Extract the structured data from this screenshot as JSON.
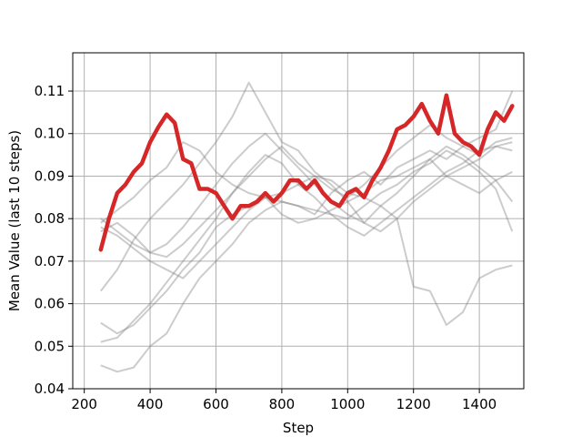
{
  "chart_data": {
    "type": "line",
    "xlabel": "Step",
    "ylabel": "Mean Value (last 10 steps)",
    "xlim": [
      165,
      1535
    ],
    "ylim": [
      0.04,
      0.119
    ],
    "xticks": [
      200,
      400,
      600,
      800,
      1000,
      1200,
      1400
    ],
    "yticks": [
      0.04,
      0.05,
      0.06,
      0.07,
      0.08,
      0.09,
      0.1,
      0.11
    ],
    "xtick_labels": [
      "200",
      "400",
      "600",
      "800",
      "1000",
      "1200",
      "1400"
    ],
    "ytick_labels": [
      "0.04",
      "0.05",
      "0.06",
      "0.07",
      "0.08",
      "0.09",
      "0.10",
      "0.11"
    ],
    "grid": true,
    "legend": "none",
    "colors": {
      "highlight": "#d62728",
      "background_series": "#808080"
    },
    "highlight_series": {
      "x": [
        250,
        275,
        300,
        325,
        350,
        375,
        400,
        425,
        450,
        475,
        500,
        525,
        550,
        575,
        600,
        625,
        650,
        675,
        700,
        725,
        750,
        775,
        800,
        825,
        850,
        875,
        900,
        925,
        950,
        975,
        1000,
        1025,
        1050,
        1075,
        1100,
        1125,
        1150,
        1175,
        1200,
        1225,
        1250,
        1275,
        1300,
        1325,
        1350,
        1375,
        1400,
        1425,
        1450,
        1475,
        1500
      ],
      "values": [
        0.0727,
        0.08,
        0.086,
        0.088,
        0.091,
        0.093,
        0.098,
        0.1015,
        0.1045,
        0.1025,
        0.094,
        0.093,
        0.087,
        0.087,
        0.086,
        0.083,
        0.08,
        0.083,
        0.083,
        0.084,
        0.086,
        0.084,
        0.086,
        0.089,
        0.089,
        0.087,
        0.089,
        0.086,
        0.084,
        0.083,
        0.086,
        0.087,
        0.085,
        0.089,
        0.092,
        0.096,
        0.101,
        0.102,
        0.104,
        0.107,
        0.103,
        0.1,
        0.109,
        0.1,
        0.098,
        0.097,
        0.095,
        0.101,
        0.105,
        0.103,
        0.1065
      ]
    },
    "background_series": [
      {
        "x": [
          250,
          300,
          350,
          400,
          450,
          500,
          550,
          600,
          650,
          700,
          750,
          800,
          850,
          900,
          950,
          1000,
          1050,
          1100,
          1150,
          1200,
          1250,
          1300,
          1350,
          1400,
          1450,
          1500
        ],
        "values": [
          0.0455,
          0.044,
          0.045,
          0.05,
          0.053,
          0.06,
          0.066,
          0.07,
          0.074,
          0.079,
          0.082,
          0.084,
          0.083,
          0.081,
          0.086,
          0.089,
          0.091,
          0.088,
          0.092,
          0.094,
          0.096,
          0.094,
          0.097,
          0.099,
          0.101,
          0.11
        ]
      },
      {
        "x": [
          250,
          300,
          350,
          400,
          450,
          500,
          550,
          600,
          650,
          700,
          750,
          800,
          850,
          900,
          950,
          1000,
          1050,
          1100,
          1150,
          1200,
          1250,
          1300,
          1350,
          1400,
          1450,
          1500
        ],
        "values": [
          0.0555,
          0.053,
          0.055,
          0.059,
          0.063,
          0.068,
          0.072,
          0.078,
          0.081,
          0.083,
          0.085,
          0.086,
          0.088,
          0.09,
          0.089,
          0.086,
          0.085,
          0.083,
          0.08,
          0.064,
          0.063,
          0.055,
          0.058,
          0.066,
          0.068,
          0.069
        ]
      },
      {
        "x": [
          250,
          300,
          350,
          400,
          450,
          500,
          550,
          600,
          650,
          700,
          750,
          800,
          850,
          900,
          950,
          1000,
          1050,
          1100,
          1150,
          1200,
          1250,
          1300,
          1350,
          1400,
          1450,
          1500
        ],
        "values": [
          0.063,
          0.068,
          0.075,
          0.08,
          0.084,
          0.088,
          0.093,
          0.098,
          0.104,
          0.112,
          0.105,
          0.098,
          0.096,
          0.091,
          0.088,
          0.084,
          0.079,
          0.083,
          0.086,
          0.09,
          0.094,
          0.097,
          0.095,
          0.092,
          0.089,
          0.084
        ]
      },
      {
        "x": [
          250,
          300,
          350,
          400,
          450,
          500,
          550,
          600,
          650,
          700,
          750,
          800,
          850,
          900,
          950,
          1000,
          1050,
          1100,
          1150,
          1200,
          1250,
          1300,
          1350,
          1400,
          1450,
          1500
        ],
        "values": [
          0.079,
          0.082,
          0.085,
          0.089,
          0.092,
          0.098,
          0.096,
          0.091,
          0.088,
          0.086,
          0.085,
          0.084,
          0.083,
          0.082,
          0.081,
          0.08,
          0.083,
          0.086,
          0.088,
          0.091,
          0.093,
          0.096,
          0.094,
          0.091,
          0.087,
          0.077
        ]
      },
      {
        "x": [
          250,
          300,
          350,
          400,
          450,
          500,
          550,
          600,
          650,
          700,
          750,
          800,
          850,
          900,
          950,
          1000,
          1050,
          1100,
          1150,
          1200,
          1250,
          1300,
          1350,
          1400,
          1450,
          1500
        ],
        "values": [
          0.08,
          0.077,
          0.074,
          0.072,
          0.071,
          0.074,
          0.078,
          0.082,
          0.086,
          0.09,
          0.094,
          0.097,
          0.093,
          0.09,
          0.087,
          0.085,
          0.088,
          0.092,
          0.096,
          0.099,
          0.102,
          0.099,
          0.097,
          0.095,
          0.098,
          0.099
        ]
      },
      {
        "x": [
          250,
          300,
          350,
          400,
          450,
          500,
          550,
          600,
          650,
          700,
          750,
          800,
          850,
          900,
          950,
          1000,
          1050,
          1100,
          1150,
          1200,
          1250,
          1300,
          1350,
          1400,
          1450,
          1500
        ],
        "values": [
          0.078,
          0.076,
          0.073,
          0.07,
          0.068,
          0.066,
          0.07,
          0.074,
          0.078,
          0.082,
          0.085,
          0.081,
          0.079,
          0.08,
          0.082,
          0.084,
          0.086,
          0.089,
          0.09,
          0.092,
          0.094,
          0.09,
          0.088,
          0.086,
          0.089,
          0.091
        ]
      },
      {
        "x": [
          250,
          300,
          350,
          400,
          450,
          500,
          550,
          600,
          650,
          700,
          750,
          800,
          850,
          900,
          950,
          1000,
          1050,
          1100,
          1150,
          1200,
          1250,
          1300,
          1350,
          1400,
          1450,
          1500
        ],
        "values": [
          0.051,
          0.052,
          0.056,
          0.06,
          0.065,
          0.07,
          0.075,
          0.08,
          0.086,
          0.091,
          0.095,
          0.093,
          0.088,
          0.085,
          0.081,
          0.078,
          0.076,
          0.079,
          0.082,
          0.085,
          0.088,
          0.091,
          0.093,
          0.096,
          0.097,
          0.096
        ]
      },
      {
        "x": [
          250,
          300,
          350,
          400,
          450,
          500,
          550,
          600,
          650,
          700,
          750,
          800,
          850,
          900,
          950,
          1000,
          1050,
          1100,
          1150,
          1200,
          1250,
          1300,
          1350,
          1400,
          1450,
          1500
        ],
        "values": [
          0.077,
          0.079,
          0.076,
          0.072,
          0.074,
          0.078,
          0.083,
          0.088,
          0.093,
          0.097,
          0.1,
          0.096,
          0.092,
          0.088,
          0.084,
          0.081,
          0.079,
          0.077,
          0.08,
          0.084,
          0.087,
          0.09,
          0.092,
          0.094,
          0.097,
          0.098
        ]
      }
    ]
  }
}
